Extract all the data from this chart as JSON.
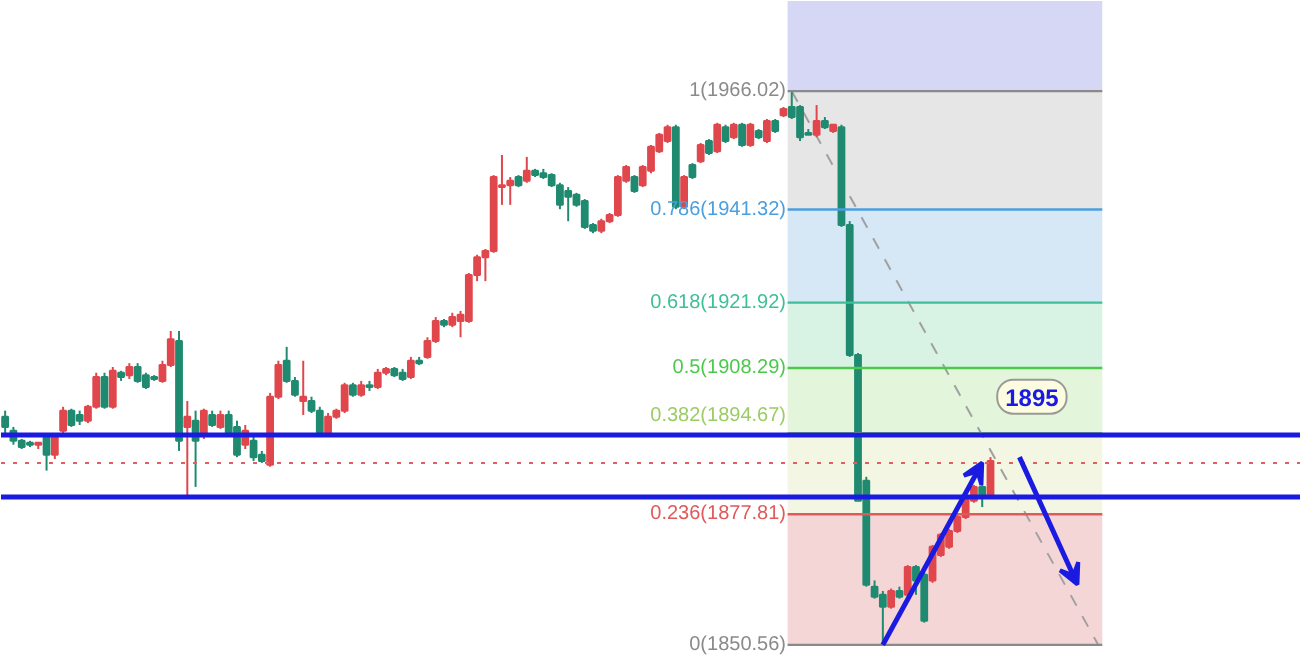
{
  "chart_data": {
    "type": "candlestick",
    "categories": [
      null,
      null,
      null,
      null,
      null,
      null,
      null,
      null,
      null,
      null,
      null,
      null,
      null,
      null,
      null,
      null,
      null,
      null,
      null,
      null,
      null,
      null,
      null,
      null,
      null,
      null,
      null,
      null,
      null,
      null,
      null,
      null,
      null,
      null,
      null,
      null,
      null,
      null,
      null,
      null,
      null,
      null,
      null,
      null,
      null,
      null,
      null,
      null,
      null,
      null,
      null,
      null,
      null,
      null,
      null,
      null,
      null,
      null,
      null,
      null,
      null,
      null,
      null,
      null,
      null,
      null,
      null,
      null,
      null,
      null,
      null,
      null,
      null,
      null,
      null,
      null,
      null,
      null,
      null,
      null,
      null,
      null,
      null,
      null,
      null,
      null,
      null,
      null,
      null,
      null,
      null,
      null,
      null,
      null,
      null,
      null,
      null,
      null,
      null,
      null,
      null,
      null,
      null,
      null,
      null,
      null,
      null,
      null,
      null,
      null,
      null,
      null,
      null,
      null,
      null,
      null,
      null,
      null,
      null,
      null,
      null,
      null,
      null,
      null,
      null,
      null,
      null,
      null,
      null,
      null,
      null,
      null,
      null,
      null,
      null,
      null,
      null,
      null,
      null,
      null,
      null,
      null,
      null,
      null,
      null,
      null,
      null,
      null,
      null,
      null,
      null,
      null,
      null,
      null,
      null,
      null,
      null
    ],
    "ohlc": [
      [
        1898.1,
        1899.4,
        1894.7,
        1896.0
      ],
      [
        1895.2,
        1896.0,
        1892.3,
        1893.1
      ],
      [
        1893.1,
        1893.5,
        1891.4,
        1891.8
      ],
      [
        1892.7,
        1893.1,
        1891.8,
        1892.3
      ],
      [
        1892.3,
        1892.7,
        1891.4,
        1892.7
      ],
      [
        1893.9,
        1894.7,
        1886.9,
        1890.2
      ],
      [
        1890.2,
        1894.7,
        1889.3,
        1893.9
      ],
      [
        1895.2,
        1900.2,
        1894.3,
        1899.4
      ],
      [
        1899.4,
        1899.8,
        1896.0,
        1896.4
      ],
      [
        1898.5,
        1899.4,
        1896.4,
        1897.3
      ],
      [
        1897.3,
        1900.6,
        1896.8,
        1900.2
      ],
      [
        1900.2,
        1907.3,
        1899.8,
        1906.4
      ],
      [
        1906.4,
        1907.3,
        1899.8,
        1900.2
      ],
      [
        1900.2,
        1908.5,
        1899.8,
        1907.7
      ],
      [
        1907.3,
        1907.7,
        1905.6,
        1906.4
      ],
      [
        1906.8,
        1909.3,
        1906.0,
        1908.5
      ],
      [
        1908.5,
        1909.3,
        1905.2,
        1905.6
      ],
      [
        1906.8,
        1907.3,
        1903.9,
        1904.3
      ],
      [
        1906.4,
        1906.8,
        1905.6,
        1906.0
      ],
      [
        1905.6,
        1909.8,
        1905.2,
        1908.9
      ],
      [
        1908.9,
        1916.0,
        1908.5,
        1914.3
      ],
      [
        1913.9,
        1916.0,
        1891.0,
        1893.1
      ],
      [
        1896.0,
        1901.4,
        1881.4,
        1898.1
      ],
      [
        1897.3,
        1899.4,
        1883.5,
        1893.1
      ],
      [
        1894.3,
        1899.8,
        1893.5,
        1899.4
      ],
      [
        1898.5,
        1899.4,
        1896.0,
        1896.4
      ],
      [
        1896.0,
        1899.4,
        1895.6,
        1898.5
      ],
      [
        1898.5,
        1899.4,
        1893.9,
        1894.3
      ],
      [
        1896.0,
        1897.3,
        1889.7,
        1890.2
      ],
      [
        1892.3,
        1896.4,
        1891.4,
        1895.2
      ],
      [
        1893.1,
        1893.9,
        1888.9,
        1889.7
      ],
      [
        1890.2,
        1891.0,
        1888.5,
        1888.9
      ],
      [
        1888.1,
        1903.1,
        1887.7,
        1902.3
      ],
      [
        1902.3,
        1909.8,
        1901.8,
        1908.9
      ],
      [
        1909.8,
        1912.7,
        1905.2,
        1905.6
      ],
      [
        1905.6,
        1906.4,
        1902.3,
        1902.7
      ],
      [
        1901.4,
        1909.8,
        1898.5,
        1902.3
      ],
      [
        1901.4,
        1902.3,
        1898.9,
        1899.4
      ],
      [
        1899.4,
        1900.2,
        1893.9,
        1894.3
      ],
      [
        1894.3,
        1898.9,
        1893.9,
        1898.1
      ],
      [
        1898.1,
        1899.8,
        1897.7,
        1899.4
      ],
      [
        1899.4,
        1905.2,
        1898.9,
        1904.7
      ],
      [
        1904.7,
        1905.2,
        1902.3,
        1902.7
      ],
      [
        1902.7,
        1905.6,
        1902.3,
        1904.7
      ],
      [
        1904.7,
        1905.6,
        1903.5,
        1904.3
      ],
      [
        1904.3,
        1908.1,
        1903.9,
        1907.3
      ],
      [
        1907.3,
        1908.5,
        1906.8,
        1908.1
      ],
      [
        1908.1,
        1908.5,
        1906.4,
        1906.8
      ],
      [
        1907.3,
        1908.1,
        1905.6,
        1906.0
      ],
      [
        1906.4,
        1910.6,
        1906.0,
        1909.8
      ],
      [
        1909.8,
        1910.6,
        1908.9,
        1909.3
      ],
      [
        1910.6,
        1914.7,
        1910.2,
        1913.9
      ],
      [
        1913.9,
        1918.9,
        1913.5,
        1918.1
      ],
      [
        1918.1,
        1918.5,
        1916.8,
        1917.3
      ],
      [
        1917.3,
        1919.8,
        1916.8,
        1918.9
      ],
      [
        1918.1,
        1920.2,
        1914.7,
        1919.4
      ],
      [
        1918.1,
        1928.1,
        1917.7,
        1927.7
      ],
      [
        1927.7,
        1931.9,
        1926.4,
        1931.4
      ],
      [
        1931.4,
        1933.1,
        1926.4,
        1932.7
      ],
      [
        1932.7,
        1948.5,
        1932.3,
        1948.1
      ],
      [
        1946.0,
        1952.7,
        1942.3,
        1946.4
      ],
      [
        1946.4,
        1948.1,
        1942.3,
        1947.3
      ],
      [
        1948.1,
        1948.5,
        1946.0,
        1946.4
      ],
      [
        1947.3,
        1952.3,
        1946.9,
        1949.4
      ],
      [
        1949.4,
        1949.8,
        1948.1,
        1948.5
      ],
      [
        1948.9,
        1949.8,
        1947.7,
        1948.1
      ],
      [
        1948.5,
        1948.9,
        1946.0,
        1946.4
      ],
      [
        1946.4,
        1946.9,
        1941.4,
        1942.3
      ],
      [
        1945.2,
        1946.0,
        1938.9,
        1944.0
      ],
      [
        1944.4,
        1944.8,
        1941.9,
        1942.3
      ],
      [
        1943.1,
        1943.5,
        1937.3,
        1937.7
      ],
      [
        1938.1,
        1938.5,
        1936.4,
        1936.9
      ],
      [
        1936.9,
        1939.4,
        1936.4,
        1938.9
      ],
      [
        1938.9,
        1940.6,
        1938.5,
        1940.2
      ],
      [
        1940.2,
        1948.5,
        1939.8,
        1948.1
      ],
      [
        1947.3,
        1950.6,
        1946.9,
        1950.2
      ],
      [
        1948.1,
        1948.5,
        1944.8,
        1945.2
      ],
      [
        1946.4,
        1950.6,
        1946.0,
        1950.2
      ],
      [
        1949.4,
        1954.8,
        1948.9,
        1954.4
      ],
      [
        1953.5,
        1957.3,
        1953.1,
        1956.9
      ],
      [
        1955.6,
        1959.0,
        1955.2,
        1958.5
      ],
      [
        1958.5,
        1959.0,
        1941.4,
        1941.9
      ],
      [
        1941.9,
        1948.5,
        1941.4,
        1948.1
      ],
      [
        1950.6,
        1951.0,
        1947.7,
        1948.1
      ],
      [
        1951.4,
        1955.2,
        1951.0,
        1954.8
      ],
      [
        1955.6,
        1956.0,
        1952.7,
        1953.1
      ],
      [
        1953.5,
        1959.4,
        1953.1,
        1959.0
      ],
      [
        1958.5,
        1959.0,
        1955.2,
        1955.6
      ],
      [
        1956.4,
        1959.4,
        1956.0,
        1959.0
      ],
      [
        1959.0,
        1959.4,
        1954.4,
        1954.8
      ],
      [
        1954.8,
        1959.4,
        1954.4,
        1959.0
      ],
      [
        1957.7,
        1958.1,
        1956.0,
        1956.4
      ],
      [
        1955.6,
        1960.2,
        1955.2,
        1959.8
      ],
      [
        1959.8,
        1960.2,
        1957.3,
        1957.7
      ],
      [
        1961.0,
        1962.7,
        1960.6,
        1962.3
      ],
      [
        1962.7,
        1966.02,
        1960.2,
        1960.6
      ],
      [
        1962.7,
        1963.1,
        1955.6,
        1956.4
      ],
      [
        1957.3,
        1958.1,
        1956.9,
        1956.9
      ],
      [
        1956.9,
        1963.1,
        1956.4,
        1959.8
      ],
      [
        1959.8,
        1960.6,
        1958.1,
        1958.5
      ],
      [
        1957.7,
        1959.0,
        1957.3,
        1959.0
      ],
      [
        1958.5,
        1959.0,
        1937.7,
        1938.1
      ],
      [
        1938.1,
        1938.9,
        1910.6,
        1911.0
      ],
      [
        1911.0,
        1911.4,
        1880.6,
        1880.6
      ],
      [
        1884.8,
        1885.6,
        1862.7,
        1863.1
      ],
      [
        1862.7,
        1864.0,
        1860.2,
        1860.6
      ],
      [
        1861.0,
        1861.8,
        1850.56,
        1858.5
      ],
      [
        1858.5,
        1862.3,
        1858.1,
        1861.8
      ],
      [
        1861.8,
        1862.7,
        1860.2,
        1860.6
      ],
      [
        1861.0,
        1867.2,
        1860.6,
        1866.8
      ],
      [
        1866.8,
        1867.2,
        1861.0,
        1864.0
      ],
      [
        1865.2,
        1865.6,
        1855.2,
        1855.6
      ],
      [
        1864.0,
        1871.4,
        1863.5,
        1871.0
      ],
      [
        1869.3,
        1873.9,
        1868.9,
        1873.5
      ],
      [
        1871.0,
        1874.7,
        1870.6,
        1874.3
      ],
      [
        1874.3,
        1877.7,
        1873.9,
        1877.2
      ],
      [
        1877.2,
        1881.8,
        1876.8,
        1881.4
      ],
      [
        1880.6,
        1883.9,
        1880.2,
        1883.5
      ],
      [
        1883.5,
        1883.9,
        1879.3,
        1881.4
      ],
      [
        1881.4,
        1889.7,
        1881.0,
        1888.9
      ],
      null,
      null,
      null,
      null,
      null,
      null,
      null,
      null,
      null,
      null,
      null,
      null,
      null,
      null,
      null,
      null,
      null,
      null,
      null,
      null,
      null,
      null,
      null,
      null,
      null,
      null,
      null,
      null,
      null,
      null,
      null,
      null,
      null,
      null,
      null,
      null,
      null
    ],
    "colors": [
      "#1f8a70",
      "#1f8a70",
      "#1f8a70",
      "#1f8a70",
      "#e0474c",
      "#1f8a70",
      "#e0474c",
      "#e0474c",
      "#1f8a70",
      "#1f8a70",
      "#e0474c",
      "#e0474c",
      "#1f8a70",
      "#e0474c",
      "#1f8a70",
      "#e0474c",
      "#1f8a70",
      "#1f8a70",
      "#1f8a70",
      "#e0474c",
      "#e0474c",
      "#1f8a70",
      "#e0474c",
      "#1f8a70",
      "#e0474c",
      "#1f8a70",
      "#e0474c",
      "#1f8a70",
      "#1f8a70",
      "#e0474c",
      "#1f8a70",
      "#1f8a70",
      "#e0474c",
      "#e0474c",
      "#1f8a70",
      "#1f8a70",
      "#e0474c",
      "#1f8a70",
      "#1f8a70",
      "#e0474c",
      "#e0474c",
      "#e0474c",
      "#1f8a70",
      "#e0474c",
      "#1f8a70",
      "#e0474c",
      "#e0474c",
      "#1f8a70",
      "#1f8a70",
      "#e0474c",
      "#1f8a70",
      "#e0474c",
      "#e0474c",
      "#1f8a70",
      "#e0474c",
      "#e0474c",
      "#e0474c",
      "#e0474c",
      "#e0474c",
      "#e0474c",
      "#e0474c",
      "#e0474c",
      "#1f8a70",
      "#e0474c",
      "#1f8a70",
      "#1f8a70",
      "#1f8a70",
      "#1f8a70",
      "#1f8a70",
      "#1f8a70",
      "#1f8a70",
      "#1f8a70",
      "#e0474c",
      "#e0474c",
      "#e0474c",
      "#e0474c",
      "#1f8a70",
      "#e0474c",
      "#e0474c",
      "#e0474c",
      "#e0474c",
      "#1f8a70",
      "#e0474c",
      "#1f8a70",
      "#e0474c",
      "#1f8a70",
      "#e0474c",
      "#1f8a70",
      "#e0474c",
      "#1f8a70",
      "#e0474c",
      "#1f8a70",
      "#e0474c",
      "#1f8a70",
      "#e0474c",
      "#1f8a70",
      "#1f8a70",
      "#1f8a70",
      "#e0474c",
      "#1f8a70",
      "#e0474c",
      "#1f8a70",
      "#1f8a70",
      "#1f8a70",
      "#1f8a70",
      "#1f8a70",
      "#1f8a70",
      "#e0474c",
      "#1f8a70",
      "#e0474c",
      "#1f8a70",
      "#1f8a70",
      "#e0474c",
      "#e0474c",
      "#e0474c",
      "#e0474c",
      "#e0474c",
      "#e0474c",
      "#1f8a70",
      "#e0474c",
      null,
      null,
      null,
      null,
      null,
      null,
      null,
      null,
      null,
      null,
      null,
      null,
      null,
      null,
      null,
      null,
      null,
      null,
      null,
      null,
      null,
      null,
      null,
      null,
      null,
      null,
      null,
      null,
      null,
      null,
      null,
      null,
      null,
      null,
      null,
      null,
      null
    ],
    "ylim": [
      1844.7,
      1984.8
    ],
    "tick_labels": false,
    "series": [
      {
        "type": "line",
        "values": [
          null,
          null,
          null,
          null,
          null,
          null,
          null,
          null,
          null,
          null,
          null,
          null,
          null,
          null,
          null,
          null,
          null,
          null,
          null,
          null,
          null,
          null,
          null,
          null,
          null,
          null,
          null,
          null,
          null,
          null,
          null,
          null,
          null,
          null,
          null,
          null,
          null,
          null,
          null,
          null,
          null,
          null,
          null,
          null,
          null,
          null,
          null,
          null,
          null,
          null,
          null,
          null,
          null,
          null,
          null,
          null,
          null,
          null,
          null,
          null,
          null,
          null,
          null,
          null,
          null,
          null,
          null,
          null,
          null,
          null,
          null,
          null,
          null,
          null,
          null,
          null,
          null,
          null,
          null,
          null,
          null,
          null,
          null,
          null,
          null,
          null,
          null,
          null,
          null,
          null,
          null,
          null,
          null,
          null,
          null,
          1966.0,
          null,
          null,
          null,
          null,
          null,
          null,
          null,
          null,
          null,
          null,
          null,
          null,
          null,
          null,
          null,
          null,
          null,
          null,
          null,
          null,
          null,
          null,
          null,
          null,
          null,
          null,
          null,
          null,
          null,
          null,
          null,
          null,
          null,
          null,
          null,
          null,
          1850.6,
          null,
          null,
          null,
          null,
          null,
          null,
          null,
          null,
          null,
          null,
          null,
          null,
          null,
          null,
          null,
          null,
          null,
          null,
          null,
          null,
          null,
          null,
          null,
          null
        ],
        "color": "#a0a0a0",
        "line_style": "dashed"
      }
    ],
    "bands": [
      {
        "axis": "y",
        "from": 1966.02,
        "to": 1984.8,
        "color": "#d6d6f5"
      },
      {
        "axis": "y",
        "from": 1941.32,
        "to": 1966.02,
        "color": "#e6e6e6"
      },
      {
        "axis": "y",
        "from": 1921.92,
        "to": 1941.32,
        "color": "#d6e8f5"
      },
      {
        "axis": "y",
        "from": 1908.29,
        "to": 1921.92,
        "color": "#d8f3e4"
      },
      {
        "axis": "y",
        "from": 1894.67,
        "to": 1908.29,
        "color": "#e3f5da"
      },
      {
        "axis": "y",
        "from": 1877.81,
        "to": 1894.67,
        "color": "#f2f6e2"
      },
      {
        "axis": "y",
        "from": 1850.56,
        "to": 1877.81,
        "color": "#f5d6d6"
      }
    ],
    "ref_lines": [
      {
        "axis": "y",
        "value": 1966.02,
        "label": "1(1966.02)",
        "color": "#8a8a8a"
      },
      {
        "axis": "y",
        "value": 1941.32,
        "label": "0.786(1941.32)",
        "color": "#4a9fe0"
      },
      {
        "axis": "y",
        "value": 1921.92,
        "label": "0.618(1921.92)",
        "color": "#3fbf98"
      },
      {
        "axis": "y",
        "value": 1908.29,
        "label": "0.5(1908.29)",
        "color": "#4cc94c"
      },
      {
        "axis": "y",
        "value": 1894.67,
        "label": "0.382(1894.67)",
        "color": "#9ccc65"
      },
      {
        "axis": "y",
        "value": 1877.81,
        "label": "0.236(1877.81)",
        "color": "#e05a5a"
      },
      {
        "axis": "y",
        "value": 1850.56,
        "label": "0(1850.56)",
        "color": "#8a8a8a"
      },
      {
        "axis": "y",
        "value": 1888.5,
        "color": "#e06060",
        "line_style": "dotted"
      },
      {
        "axis": "y",
        "value": 1894.3,
        "color": "#1a1ae0"
      },
      {
        "axis": "y",
        "value": 1881.4,
        "color": "#1a1ae0"
      }
    ],
    "annotations": [
      {
        "text": "1895",
        "y": 1902.3
      }
    ]
  }
}
